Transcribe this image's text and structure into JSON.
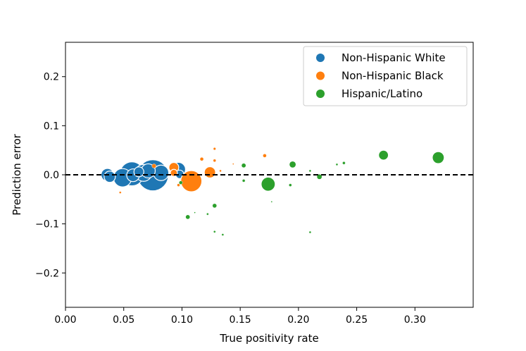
{
  "chart_data": {
    "type": "scatter",
    "title": "",
    "xlabel": "True positivity rate",
    "ylabel": "Prediction error",
    "xlim": [
      0.0,
      0.35
    ],
    "ylim": [
      -0.27,
      0.27
    ],
    "x_ticks": [
      0.0,
      0.05,
      0.1,
      0.15,
      0.2,
      0.25,
      0.3
    ],
    "x_tick_labels": [
      "0.00",
      "0.05",
      "0.10",
      "0.15",
      "0.20",
      "0.25",
      "0.30"
    ],
    "y_ticks": [
      -0.2,
      -0.1,
      0.0,
      0.1,
      0.2
    ],
    "y_tick_labels": [
      "−0.2",
      "−0.1",
      "0.0",
      "0.1",
      "0.2"
    ],
    "reference_line": {
      "y": 0.0,
      "style": "dashed",
      "color": "#000000"
    },
    "legend_position": "top-right",
    "series": [
      {
        "name": "Non-Hispanic White",
        "color": "#1f77b4",
        "points": [
          {
            "x": 0.036,
            "y": 0.0,
            "s": 9
          },
          {
            "x": 0.038,
            "y": -0.004,
            "s": 8
          },
          {
            "x": 0.049,
            "y": -0.006,
            "s": 13
          },
          {
            "x": 0.057,
            "y": 0.002,
            "s": 17
          },
          {
            "x": 0.058,
            "y": -0.001,
            "s": 9
          },
          {
            "x": 0.063,
            "y": 0.006,
            "s": 7
          },
          {
            "x": 0.067,
            "y": 0.004,
            "s": 12
          },
          {
            "x": 0.071,
            "y": 0.008,
            "s": 10
          },
          {
            "x": 0.075,
            "y": -0.001,
            "s": 22
          },
          {
            "x": 0.082,
            "y": 0.004,
            "s": 11
          },
          {
            "x": 0.097,
            "y": 0.011,
            "s": 10
          },
          {
            "x": 0.098,
            "y": 0.001,
            "s": 6
          }
        ]
      },
      {
        "name": "Non-Hispanic Black",
        "color": "#ff7f0e",
        "points": [
          {
            "x": 0.047,
            "y": -0.036,
            "s": 1.5
          },
          {
            "x": 0.076,
            "y": 0.018,
            "s": 3
          },
          {
            "x": 0.093,
            "y": 0.015,
            "s": 7
          },
          {
            "x": 0.093,
            "y": 0.004,
            "s": 5
          },
          {
            "x": 0.097,
            "y": -0.021,
            "s": 2
          },
          {
            "x": 0.108,
            "y": -0.013,
            "s": 15
          },
          {
            "x": 0.117,
            "y": 0.032,
            "s": 2.5
          },
          {
            "x": 0.124,
            "y": 0.005,
            "s": 8
          },
          {
            "x": 0.128,
            "y": 0.053,
            "s": 1.8
          },
          {
            "x": 0.128,
            "y": 0.029,
            "s": 2
          },
          {
            "x": 0.133,
            "y": 0.008,
            "s": 1.5
          },
          {
            "x": 0.144,
            "y": 0.022,
            "s": 1
          },
          {
            "x": 0.171,
            "y": 0.039,
            "s": 2.5
          }
        ]
      },
      {
        "name": "Hispanic/Latino",
        "color": "#2ca02c",
        "points": [
          {
            "x": 0.099,
            "y": -0.016,
            "s": 2.5
          },
          {
            "x": 0.105,
            "y": -0.086,
            "s": 3.5
          },
          {
            "x": 0.111,
            "y": -0.077,
            "s": 1
          },
          {
            "x": 0.122,
            "y": -0.08,
            "s": 1.5
          },
          {
            "x": 0.128,
            "y": -0.063,
            "s": 3
          },
          {
            "x": 0.128,
            "y": -0.116,
            "s": 1.5
          },
          {
            "x": 0.135,
            "y": -0.122,
            "s": 1.5
          },
          {
            "x": 0.153,
            "y": 0.019,
            "s": 3.5
          },
          {
            "x": 0.153,
            "y": -0.012,
            "s": 2
          },
          {
            "x": 0.174,
            "y": -0.019,
            "s": 10
          },
          {
            "x": 0.177,
            "y": -0.055,
            "s": 1
          },
          {
            "x": 0.193,
            "y": -0.021,
            "s": 2
          },
          {
            "x": 0.195,
            "y": 0.021,
            "s": 5
          },
          {
            "x": 0.21,
            "y": 0.008,
            "s": 1.5
          },
          {
            "x": 0.21,
            "y": -0.117,
            "s": 1.5
          },
          {
            "x": 0.218,
            "y": -0.004,
            "s": 4
          },
          {
            "x": 0.233,
            "y": 0.021,
            "s": 1.5
          },
          {
            "x": 0.239,
            "y": 0.024,
            "s": 2
          },
          {
            "x": 0.273,
            "y": 0.04,
            "s": 7
          },
          {
            "x": 0.32,
            "y": 0.035,
            "s": 8.5
          }
        ]
      }
    ]
  }
}
